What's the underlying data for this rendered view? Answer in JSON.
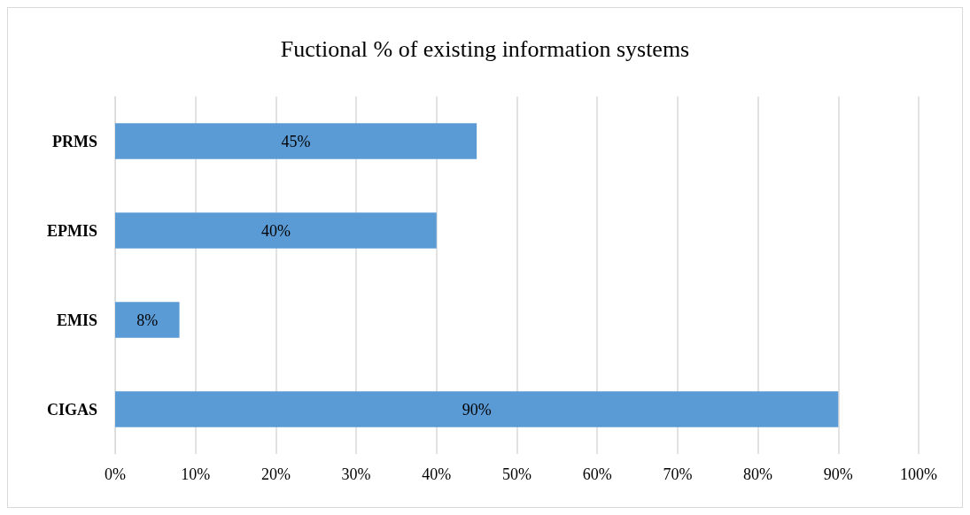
{
  "chart_data": {
    "type": "bar",
    "orientation": "horizontal",
    "title": "Fuctional % of existing information systems",
    "categories": [
      "PRMS",
      "EPMIS",
      "EMIS",
      "CIGAS"
    ],
    "values": [
      45,
      40,
      8,
      90
    ],
    "value_labels": [
      "45%",
      "40%",
      "8%",
      "90%"
    ],
    "color": "#5b9bd5",
    "xlim": [
      0,
      100
    ],
    "xticks": [
      {
        "value": 0,
        "label": "0%"
      },
      {
        "value": 10,
        "label": "10%"
      },
      {
        "value": 20,
        "label": "20%"
      },
      {
        "value": 30,
        "label": "30%"
      },
      {
        "value": 40,
        "label": "40%"
      },
      {
        "value": 50,
        "label": "50%"
      },
      {
        "value": 60,
        "label": "60%"
      },
      {
        "value": 70,
        "label": "70%"
      },
      {
        "value": 80,
        "label": "80%"
      },
      {
        "value": 90,
        "label": "90%"
      },
      {
        "value": 100,
        "label": "100%"
      }
    ],
    "grid": "x"
  }
}
